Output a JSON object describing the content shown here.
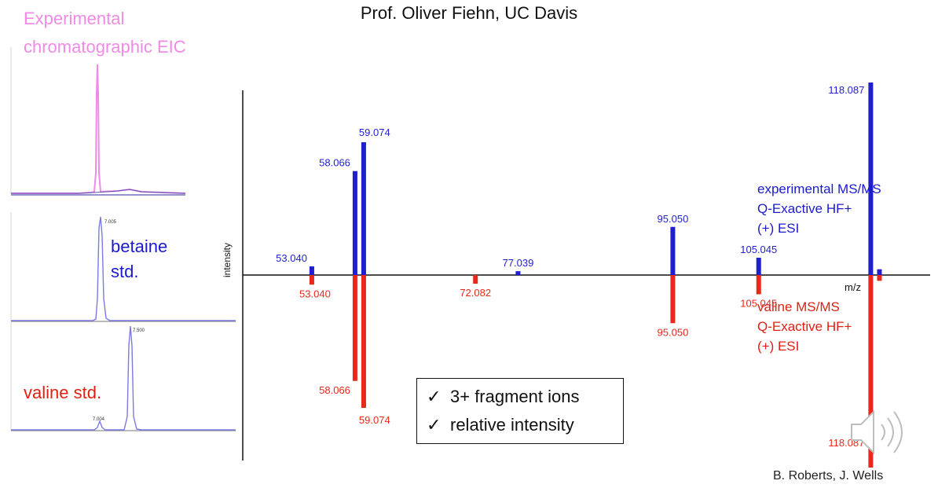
{
  "header": {
    "title": "Prof. Oliver Fiehn, UC Davis"
  },
  "eic": {
    "title_line1": "Experimental",
    "title_line2": "chromatographic EIC",
    "betaine_label_line1": "betaine",
    "betaine_label_line2": "std.",
    "betaine_peak_label": "7.005",
    "valine_label": "valine std.",
    "valine_peak_label": "7.500",
    "valine_minor_peak_label": "7.004"
  },
  "legend": {
    "experimental": {
      "line1": "experimental MS/MS",
      "line2": "Q-Exactive HF+",
      "line3": "(+) ESI"
    },
    "valine": {
      "line1": "valine MS/MS",
      "line2": "Q-Exactive HF+",
      "line3": "(+) ESI"
    }
  },
  "checks": {
    "item1": "3+ fragment ions",
    "item2": "relative intensity",
    "mark": "✓"
  },
  "credit": "B. Roberts, J. Wells",
  "colors": {
    "experimental": "#1f1fd0",
    "reference": "#e8281a",
    "eic": "#f08ae6",
    "std_trace": "#7a7ae0"
  },
  "chart_data": {
    "type": "bar",
    "xlabel": "m/z",
    "ylabel": "intensity",
    "xlim": [
      45,
      125
    ],
    "ylim": [
      -100,
      100
    ],
    "series": [
      {
        "name": "experimental MS/MS",
        "color": "#1f1fd0",
        "points": [
          {
            "x": 53.04,
            "y": 4.5,
            "label": "53.040"
          },
          {
            "x": 58.066,
            "y": 54,
            "label": "58.066"
          },
          {
            "x": 59.074,
            "y": 69,
            "label": "59.074"
          },
          {
            "x": 77.039,
            "y": 2,
            "label": "77.039"
          },
          {
            "x": 95.05,
            "y": 25,
            "label": "95.050"
          },
          {
            "x": 105.045,
            "y": 9,
            "label": "105.045"
          },
          {
            "x": 118.087,
            "y": 100,
            "label": "118.087"
          },
          {
            "x": 119.1,
            "y": 3,
            "label": ""
          }
        ]
      },
      {
        "name": "valine MS/MS",
        "color": "#e8281a",
        "points": [
          {
            "x": 53.04,
            "y": -5,
            "label": "53.040"
          },
          {
            "x": 58.066,
            "y": -55,
            "label": "58.066"
          },
          {
            "x": 59.074,
            "y": -69,
            "label": "59.074"
          },
          {
            "x": 72.082,
            "y": -4.5,
            "label": "72.082"
          },
          {
            "x": 95.05,
            "y": -25,
            "label": "95.050"
          },
          {
            "x": 105.045,
            "y": -10,
            "label": "105.045"
          },
          {
            "x": 118.087,
            "y": -100,
            "label": "118.087"
          },
          {
            "x": 119.1,
            "y": -3,
            "label": ""
          }
        ]
      }
    ]
  }
}
